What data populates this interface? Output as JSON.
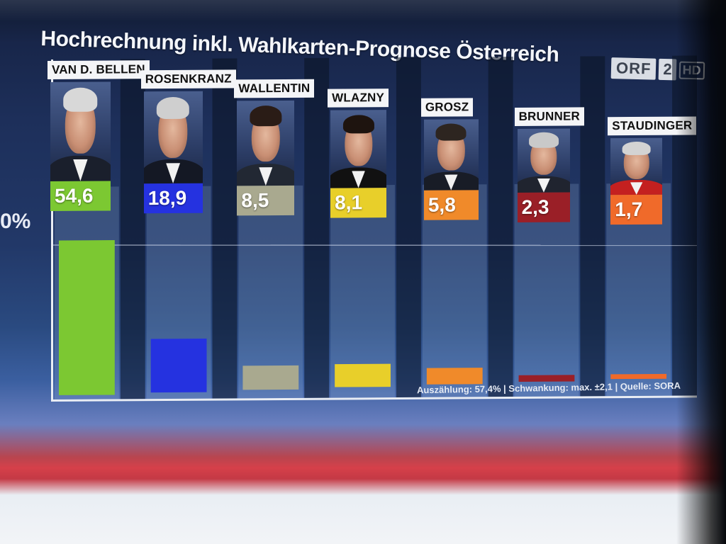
{
  "header": {
    "title": "Hochrechnung inkl. Wahlkarten-Prognose Österreich"
  },
  "logo": {
    "brand": "ORF",
    "channel": "2",
    "badge": "HD"
  },
  "y_axis_tick": "0%",
  "footer": {
    "note": "Auszählung: 57,4% | Schwankung: max. ±2,1 | Quelle: SORA"
  },
  "chart_data": {
    "type": "bar",
    "title": "Hochrechnung inkl. Wahlkarten-Prognose Österreich",
    "categories": [
      "VAN D. BELLEN",
      "ROSENKRANZ",
      "WALLENTIN",
      "WLAZNY",
      "GROSZ",
      "BRUNNER",
      "STAUDINGER"
    ],
    "values": [
      54.6,
      18.9,
      8.5,
      8.1,
      5.8,
      2.3,
      1.7
    ],
    "value_labels": [
      "54,6",
      "18,9",
      "8,5",
      "8,1",
      "5,8",
      "2,3",
      "1,7"
    ],
    "colors": [
      "#7cc832",
      "#2532e0",
      "#a9a98f",
      "#e8cf2a",
      "#f08a2a",
      "#9a1f27",
      "#f06a2a"
    ],
    "ylim": [
      0,
      60
    ],
    "grid": true,
    "legend": "none"
  }
}
